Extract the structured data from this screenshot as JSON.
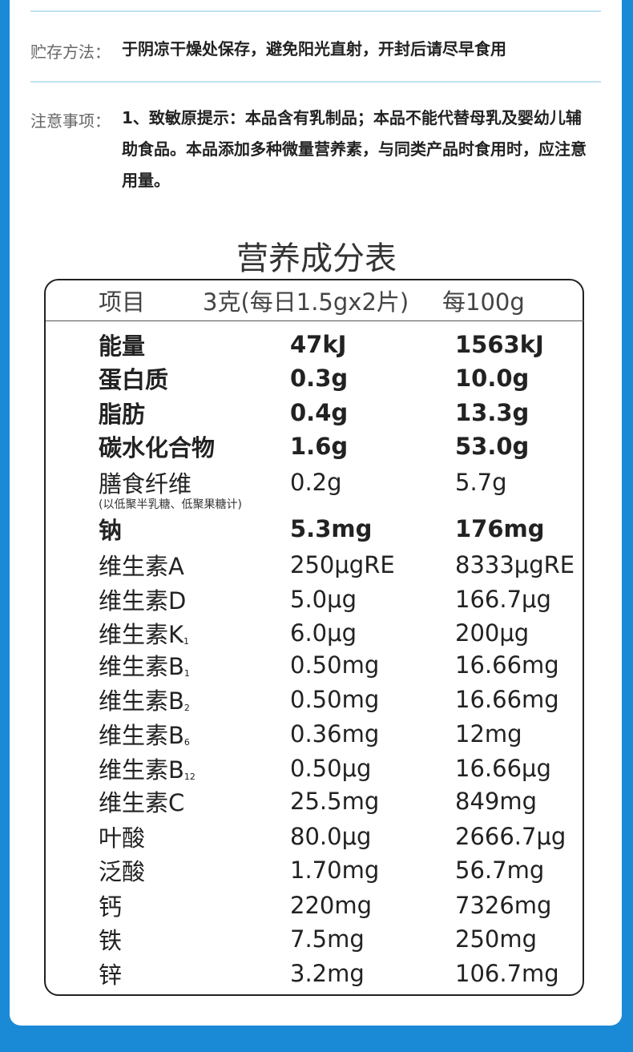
{
  "storage": {
    "label": "贮存方法：",
    "text": "于阴凉干燥处保存，避免阳光直射，开封后请尽早食用"
  },
  "notice": {
    "label": "注意事项：",
    "text": "1、致敏原提示：本品含有乳制品；本品不能代替母乳及婴幼儿辅助食品。本品添加多种微量营养素，与同类产品时食用时，应注意用量。"
  },
  "table": {
    "title": "营养成分表",
    "header": [
      "项目",
      "3克(每日1.5gx2片)",
      "每100g"
    ],
    "rows": [
      {
        "name": "能量",
        "per_serving": "47kJ",
        "per_100g": "1563kJ",
        "bold": true
      },
      {
        "name": "蛋白质",
        "per_serving": "0.3g",
        "per_100g": "10.0g",
        "bold": true
      },
      {
        "name": "脂肪",
        "per_serving": "0.4g",
        "per_100g": "13.3g",
        "bold": true
      },
      {
        "name": "碳水化合物",
        "per_serving": "1.6g",
        "per_100g": "53.0g",
        "bold": true
      },
      {
        "name": "膳食纤维",
        "note": "(以低聚半乳糖、低聚果糖计)",
        "per_serving": "0.2g",
        "per_100g": "5.7g",
        "bold": false
      },
      {
        "name": "钠",
        "per_serving": "5.3mg",
        "per_100g": "176mg",
        "bold": true
      },
      {
        "name": "维生素A",
        "per_serving": "250μgRE",
        "per_100g": "8333μgRE",
        "bold": false
      },
      {
        "name": "维生素D",
        "per_serving": "5.0μg",
        "per_100g": "166.7μg",
        "bold": false
      },
      {
        "name": "维生素K",
        "sub": "1",
        "per_serving": "6.0μg",
        "per_100g": "200μg",
        "bold": false
      },
      {
        "name": "维生素B",
        "sub": "1",
        "per_serving": "0.50mg",
        "per_100g": "16.66mg",
        "bold": false
      },
      {
        "name": "维生素B",
        "sub": "2",
        "per_serving": "0.50mg",
        "per_100g": "16.66mg",
        "bold": false
      },
      {
        "name": "维生素B",
        "sub": "6",
        "per_serving": "0.36mg",
        "per_100g": "12mg",
        "bold": false
      },
      {
        "name": "维生素B",
        "sub": "12",
        "per_serving": "0.50μg",
        "per_100g": "16.66μg",
        "bold": false
      },
      {
        "name": "维生素C",
        "per_serving": "25.5mg",
        "per_100g": "849mg",
        "bold": false
      },
      {
        "name": "叶酸",
        "per_serving": "80.0μg",
        "per_100g": "2666.7μg",
        "bold": false
      },
      {
        "name": "泛酸",
        "per_serving": "1.70mg",
        "per_100g": "56.7mg",
        "bold": false
      },
      {
        "name": "钙",
        "per_serving": "220mg",
        "per_100g": "7326mg",
        "bold": false
      },
      {
        "name": "铁",
        "per_serving": "7.5mg",
        "per_100g": "250mg",
        "bold": false
      },
      {
        "name": "锌",
        "per_serving": "3.2mg",
        "per_100g": "106.7mg",
        "bold": false
      }
    ]
  }
}
